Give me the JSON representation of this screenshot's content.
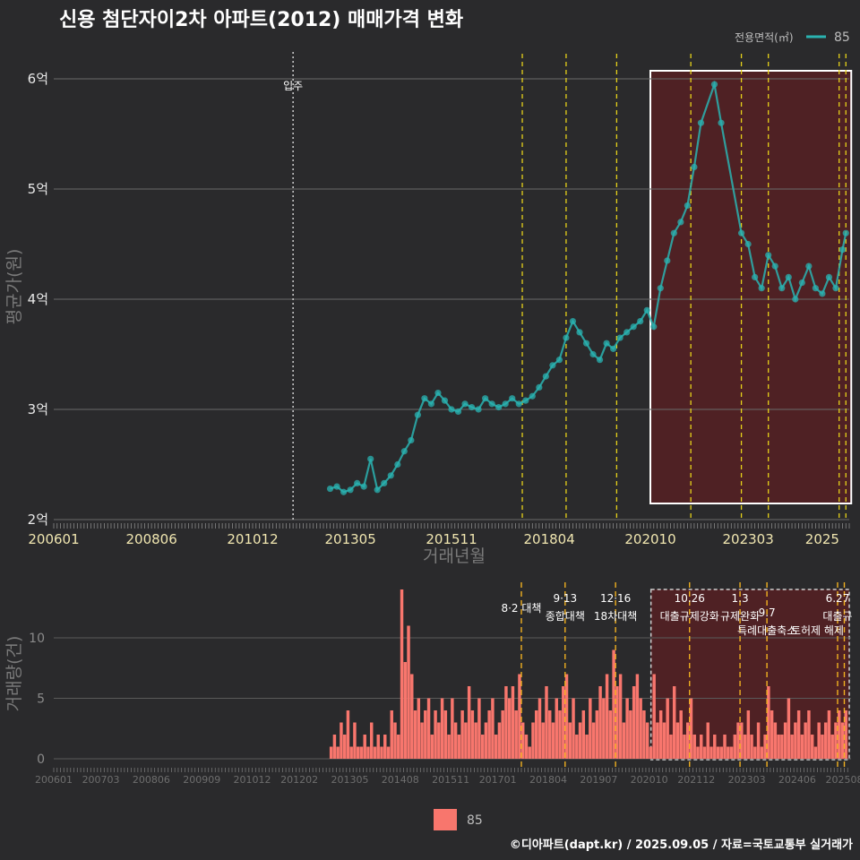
{
  "title": "신용 첨단자이2차 아파트(2012) 매매가격 변화",
  "legend": {
    "title": "전용면적(㎡)",
    "label": "85",
    "line_color": "#2ab3b1",
    "bar_color": "#f8766d"
  },
  "footer": "©디아파트(dapt.kr) / 2025.09.05 / 자료=국토교통부 실거래가",
  "chart_data": [
    {
      "type": "line",
      "xlabel": "거래년월",
      "ylabel": "평균가(원)",
      "ylim": [
        2,
        6.2
      ],
      "y_unit": "억",
      "y_ticks": [
        "2억",
        "3억",
        "4억",
        "5억",
        "6억"
      ],
      "x_ticks": [
        "200601",
        "200806",
        "201012",
        "201305",
        "201511",
        "201804",
        "202010",
        "202303",
        "2025"
      ],
      "grid": true,
      "legend_position": "top-right",
      "move_in": {
        "date": "2011-12",
        "label": "입주"
      },
      "highlight_window": [
        "2020-10",
        "2025-08"
      ],
      "policy_lines": [
        "2017-08",
        "2018-09",
        "2019-12",
        "2021-10",
        "2023-01",
        "2023-09",
        "2025-06",
        "2025-08"
      ],
      "series": [
        {
          "name": "85",
          "color": "#2ab3b1",
          "points": [
            [
              "2012-11",
              2.28
            ],
            [
              "2013-01",
              2.3
            ],
            [
              "2013-03",
              2.25
            ],
            [
              "2013-05",
              2.27
            ],
            [
              "2013-07",
              2.33
            ],
            [
              "2013-09",
              2.3
            ],
            [
              "2013-11",
              2.55
            ],
            [
              "2014-01",
              2.27
            ],
            [
              "2014-03",
              2.33
            ],
            [
              "2014-05",
              2.4
            ],
            [
              "2014-07",
              2.5
            ],
            [
              "2014-09",
              2.62
            ],
            [
              "2014-11",
              2.72
            ],
            [
              "2015-01",
              2.95
            ],
            [
              "2015-03",
              3.1
            ],
            [
              "2015-05",
              3.05
            ],
            [
              "2015-07",
              3.15
            ],
            [
              "2015-09",
              3.08
            ],
            [
              "2015-11",
              3.0
            ],
            [
              "2016-01",
              2.98
            ],
            [
              "2016-03",
              3.05
            ],
            [
              "2016-05",
              3.02
            ],
            [
              "2016-07",
              3.0
            ],
            [
              "2016-09",
              3.1
            ],
            [
              "2016-11",
              3.05
            ],
            [
              "2017-01",
              3.02
            ],
            [
              "2017-03",
              3.05
            ],
            [
              "2017-05",
              3.1
            ],
            [
              "2017-07",
              3.05
            ],
            [
              "2017-09",
              3.08
            ],
            [
              "2017-11",
              3.12
            ],
            [
              "2018-01",
              3.2
            ],
            [
              "2018-03",
              3.3
            ],
            [
              "2018-05",
              3.4
            ],
            [
              "2018-07",
              3.45
            ],
            [
              "2018-09",
              3.65
            ],
            [
              "2018-11",
              3.8
            ],
            [
              "2019-01",
              3.7
            ],
            [
              "2019-03",
              3.6
            ],
            [
              "2019-05",
              3.5
            ],
            [
              "2019-07",
              3.45
            ],
            [
              "2019-09",
              3.6
            ],
            [
              "2019-11",
              3.55
            ],
            [
              "2020-01",
              3.65
            ],
            [
              "2020-03",
              3.7
            ],
            [
              "2020-05",
              3.75
            ],
            [
              "2020-07",
              3.8
            ],
            [
              "2020-09",
              3.9
            ],
            [
              "2020-11",
              3.75
            ],
            [
              "2021-01",
              4.1
            ],
            [
              "2021-03",
              4.35
            ],
            [
              "2021-05",
              4.6
            ],
            [
              "2021-07",
              4.7
            ],
            [
              "2021-09",
              4.85
            ],
            [
              "2021-11",
              5.2
            ],
            [
              "2022-01",
              5.6
            ],
            [
              "2022-05",
              5.95
            ],
            [
              "2022-07",
              5.6
            ],
            [
              "2023-01",
              4.6
            ],
            [
              "2023-03",
              4.5
            ],
            [
              "2023-05",
              4.2
            ],
            [
              "2023-07",
              4.1
            ],
            [
              "2023-09",
              4.4
            ],
            [
              "2023-11",
              4.3
            ],
            [
              "2024-01",
              4.1
            ],
            [
              "2024-03",
              4.2
            ],
            [
              "2024-05",
              4.0
            ],
            [
              "2024-07",
              4.15
            ],
            [
              "2024-09",
              4.3
            ],
            [
              "2024-11",
              4.1
            ],
            [
              "2025-01",
              4.05
            ],
            [
              "2025-03",
              4.2
            ],
            [
              "2025-05",
              4.1
            ],
            [
              "2025-07",
              4.45
            ],
            [
              "2025-08",
              4.6
            ]
          ]
        }
      ]
    },
    {
      "type": "bar",
      "xlabel": "",
      "ylabel": "거래량(건)",
      "ylim": [
        0,
        14
      ],
      "y_ticks": [
        "0",
        "5",
        "10"
      ],
      "x_ticks": [
        "200601",
        "200703",
        "200806",
        "200909",
        "201012",
        "201202",
        "201305",
        "201408",
        "201511",
        "201701",
        "201804",
        "201907",
        "202010",
        "202112",
        "202303",
        "202406",
        "202508"
      ],
      "series": [
        {
          "name": "85",
          "color": "#f8766d",
          "values": [
            [
              "2012-11",
              1
            ],
            [
              "2012-12",
              2
            ],
            [
              "2013-01",
              1
            ],
            [
              "2013-02",
              3
            ],
            [
              "2013-03",
              2
            ],
            [
              "2013-04",
              4
            ],
            [
              "2013-05",
              1
            ],
            [
              "2013-06",
              3
            ],
            [
              "2013-07",
              1
            ],
            [
              "2013-08",
              1
            ],
            [
              "2013-09",
              2
            ],
            [
              "2013-10",
              1
            ],
            [
              "2013-11",
              3
            ],
            [
              "2013-12",
              1
            ],
            [
              "2014-01",
              2
            ],
            [
              "2014-02",
              1
            ],
            [
              "2014-03",
              2
            ],
            [
              "2014-04",
              1
            ],
            [
              "2014-05",
              4
            ],
            [
              "2014-06",
              3
            ],
            [
              "2014-07",
              2
            ],
            [
              "2014-08",
              14
            ],
            [
              "2014-09",
              8
            ],
            [
              "2014-10",
              11
            ],
            [
              "2014-11",
              7
            ],
            [
              "2014-12",
              4
            ],
            [
              "2015-01",
              5
            ],
            [
              "2015-02",
              3
            ],
            [
              "2015-03",
              4
            ],
            [
              "2015-04",
              5
            ],
            [
              "2015-05",
              2
            ],
            [
              "2015-06",
              4
            ],
            [
              "2015-07",
              3
            ],
            [
              "2015-08",
              5
            ],
            [
              "2015-09",
              4
            ],
            [
              "2015-10",
              2
            ],
            [
              "2015-11",
              5
            ],
            [
              "2015-12",
              3
            ],
            [
              "2016-01",
              2
            ],
            [
              "2016-02",
              4
            ],
            [
              "2016-03",
              3
            ],
            [
              "2016-04",
              6
            ],
            [
              "2016-05",
              4
            ],
            [
              "2016-06",
              3
            ],
            [
              "2016-07",
              5
            ],
            [
              "2016-08",
              2
            ],
            [
              "2016-09",
              3
            ],
            [
              "2016-10",
              4
            ],
            [
              "2016-11",
              5
            ],
            [
              "2016-12",
              2
            ],
            [
              "2017-01",
              3
            ],
            [
              "2017-02",
              4
            ],
            [
              "2017-03",
              6
            ],
            [
              "2017-04",
              5
            ],
            [
              "2017-05",
              6
            ],
            [
              "2017-06",
              4
            ],
            [
              "2017-07",
              7
            ],
            [
              "2017-08",
              3
            ],
            [
              "2017-09",
              2
            ],
            [
              "2017-10",
              1
            ],
            [
              "2017-11",
              3
            ],
            [
              "2017-12",
              4
            ],
            [
              "2018-01",
              5
            ],
            [
              "2018-02",
              3
            ],
            [
              "2018-03",
              6
            ],
            [
              "2018-04",
              4
            ],
            [
              "2018-05",
              3
            ],
            [
              "2018-06",
              5
            ],
            [
              "2018-07",
              4
            ],
            [
              "2018-08",
              6
            ],
            [
              "2018-09",
              7
            ],
            [
              "2018-10",
              3
            ],
            [
              "2018-11",
              5
            ],
            [
              "2018-12",
              2
            ],
            [
              "2019-01",
              3
            ],
            [
              "2019-02",
              4
            ],
            [
              "2019-03",
              2
            ],
            [
              "2019-04",
              5
            ],
            [
              "2019-05",
              3
            ],
            [
              "2019-06",
              4
            ],
            [
              "2019-07",
              6
            ],
            [
              "2019-08",
              5
            ],
            [
              "2019-09",
              7
            ],
            [
              "2019-10",
              4
            ],
            [
              "2019-11",
              9
            ],
            [
              "2019-12",
              6
            ],
            [
              "2020-01",
              7
            ],
            [
              "2020-02",
              3
            ],
            [
              "2020-03",
              5
            ],
            [
              "2020-04",
              4
            ],
            [
              "2020-05",
              6
            ],
            [
              "2020-06",
              7
            ],
            [
              "2020-07",
              5
            ],
            [
              "2020-08",
              4
            ],
            [
              "2020-09",
              3
            ],
            [
              "2020-10",
              1
            ],
            [
              "2020-11",
              7
            ],
            [
              "2020-12",
              3
            ],
            [
              "2021-01",
              4
            ],
            [
              "2021-02",
              3
            ],
            [
              "2021-03",
              5
            ],
            [
              "2021-04",
              2
            ],
            [
              "2021-05",
              6
            ],
            [
              "2021-06",
              3
            ],
            [
              "2021-07",
              4
            ],
            [
              "2021-08",
              2
            ],
            [
              "2021-09",
              3
            ],
            [
              "2021-10",
              5
            ],
            [
              "2021-11",
              2
            ],
            [
              "2021-12",
              1
            ],
            [
              "2022-01",
              2
            ],
            [
              "2022-02",
              1
            ],
            [
              "2022-03",
              3
            ],
            [
              "2022-04",
              1
            ],
            [
              "2022-05",
              2
            ],
            [
              "2022-06",
              1
            ],
            [
              "2022-07",
              1
            ],
            [
              "2022-08",
              2
            ],
            [
              "2022-09",
              1
            ],
            [
              "2022-10",
              1
            ],
            [
              "2022-11",
              2
            ],
            [
              "2022-12",
              3
            ],
            [
              "2023-01",
              3
            ],
            [
              "2023-02",
              2
            ],
            [
              "2023-03",
              4
            ],
            [
              "2023-04",
              2
            ],
            [
              "2023-05",
              1
            ],
            [
              "2023-06",
              3
            ],
            [
              "2023-07",
              1
            ],
            [
              "2023-08",
              2
            ],
            [
              "2023-09",
              6
            ],
            [
              "2023-10",
              4
            ],
            [
              "2023-11",
              3
            ],
            [
              "2023-12",
              2
            ],
            [
              "2024-01",
              2
            ],
            [
              "2024-02",
              3
            ],
            [
              "2024-03",
              5
            ],
            [
              "2024-04",
              2
            ],
            [
              "2024-05",
              3
            ],
            [
              "2024-06",
              4
            ],
            [
              "2024-07",
              2
            ],
            [
              "2024-08",
              3
            ],
            [
              "2024-09",
              4
            ],
            [
              "2024-10",
              2
            ],
            [
              "2024-11",
              1
            ],
            [
              "2024-12",
              3
            ],
            [
              "2025-01",
              2
            ],
            [
              "2025-02",
              3
            ],
            [
              "2025-03",
              4
            ],
            [
              "2025-04",
              2
            ],
            [
              "2025-05",
              3
            ],
            [
              "2025-06",
              4
            ],
            [
              "2025-07",
              3
            ],
            [
              "2025-08",
              4
            ]
          ]
        }
      ],
      "annotations": [
        {
          "date": "2017-08",
          "date_label": "",
          "text": "8·2 대책"
        },
        {
          "date": "2018-09",
          "date_label": "9·13",
          "text": "종합대책"
        },
        {
          "date": "2019-12",
          "date_label": "12·16",
          "text": "18차대책"
        },
        {
          "date": "2021-10",
          "date_label": "10.26",
          "text": "대출규제강화"
        },
        {
          "date": "2023-01",
          "date_label": "1.3",
          "text": "규제완화"
        },
        {
          "date": "2023-09",
          "date_label": "9.7",
          "text": "특례대출축소"
        },
        {
          "date": "2024-12",
          "date_label": "",
          "text": "토허제 해제"
        },
        {
          "date": "2025-06",
          "date_label": "6.27",
          "text": "대출규"
        }
      ]
    }
  ]
}
